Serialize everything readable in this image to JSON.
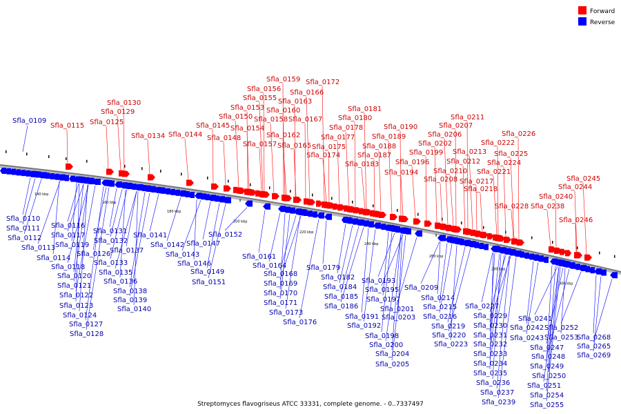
{
  "legend": {
    "forward_label": "Forward",
    "reverse_label": "Reverse",
    "forward_color": "#ff0000",
    "reverse_color": "#0000ff"
  },
  "caption": "Streptomyces flavogriseus ATCC 33331, complete genome. - 0..7337497",
  "ticks": [
    "140 kbp",
    "160 kbp",
    "180 kbp",
    "200 kbp",
    "220 kbp",
    "240 kbp",
    "260 kbp",
    "280 kbp",
    "300 kbp"
  ],
  "forward_genes": [
    "Sfla_0115",
    "Sfla_0125",
    "Sfla_0129",
    "Sfla_0130",
    "Sfla_0134",
    "Sfla_0144",
    "Sfla_0145",
    "Sfla_0148",
    "Sfla_0150",
    "Sfla_0153",
    "Sfla_0154",
    "Sfla_0155",
    "Sfla_0156",
    "Sfla_0157",
    "Sfla_0158",
    "Sfla_0159",
    "Sfla_0160",
    "Sfla_0162",
    "Sfla_0163",
    "Sfla_0165",
    "Sfla_0166",
    "Sfla_0167",
    "Sfla_0172",
    "Sfla_0174",
    "Sfla_0175",
    "Sfla_0177",
    "Sfla_0178",
    "Sfla_0180",
    "Sfla_0181",
    "Sfla_0183",
    "Sfla_0187",
    "Sfla_0188",
    "Sfla_0189",
    "Sfla_0190",
    "Sfla_0194",
    "Sfla_0196",
    "Sfla_0199",
    "Sfla_0202",
    "Sfla_0206",
    "Sfla_0207",
    "Sfla_0208",
    "Sfla_0210",
    "Sfla_0211",
    "Sfla_0212",
    "Sfla_0213",
    "Sfla_0217",
    "Sfla_0218",
    "Sfla_0221",
    "Sfla_0222",
    "Sfla_0224",
    "Sfla_0225",
    "Sfla_0226",
    "Sfla_0228",
    "Sfla_0238",
    "Sfla_0240",
    "Sfla_0244",
    "Sfla_0245",
    "Sfla_0246"
  ],
  "reverse_genes": [
    "Sfla_0109",
    "Sfla_0110",
    "Sfla_0111",
    "Sfla_0112",
    "Sfla_0113",
    "Sfla_0114",
    "Sfla_0116",
    "Sfla_0117",
    "Sfla_0118",
    "Sfla_0119",
    "Sfla_0120",
    "Sfla_0121",
    "Sfla_0122",
    "Sfla_0123",
    "Sfla_0124",
    "Sfla_0126",
    "Sfla_0127",
    "Sfla_0128",
    "Sfla_0131",
    "Sfla_0132",
    "Sfla_0133",
    "Sfla_0135",
    "Sfla_0136",
    "Sfla_0137",
    "Sfla_0138",
    "Sfla_0139",
    "Sfla_0140",
    "Sfla_0141",
    "Sfla_0142",
    "Sfla_0143",
    "Sfla_0146",
    "Sfla_0147",
    "Sfla_0149",
    "Sfla_0151",
    "Sfla_0152",
    "Sfla_0161",
    "Sfla_0164",
    "Sfla_0168",
    "Sfla_0169",
    "Sfla_0170",
    "Sfla_0171",
    "Sfla_0173",
    "Sfla_0176",
    "Sfla_0179",
    "Sfla_0182",
    "Sfla_0184",
    "Sfla_0185",
    "Sfla_0186",
    "Sfla_0191",
    "Sfla_0192",
    "Sfla_0193",
    "Sfla_0195",
    "Sfla_0197",
    "Sfla_0198",
    "Sfla_0200",
    "Sfla_0201",
    "Sfla_0203",
    "Sfla_0204",
    "Sfla_0205",
    "Sfla_0209",
    "Sfla_0214",
    "Sfla_0215",
    "Sfla_0216",
    "Sfla_0219",
    "Sfla_0220",
    "Sfla_0223",
    "Sfla_0227",
    "Sfla_0229",
    "Sfla_0230",
    "Sfla_0231",
    "Sfla_0232",
    "Sfla_0233",
    "Sfla_0234",
    "Sfla_0235",
    "Sfla_0236",
    "Sfla_0237",
    "Sfla_0239",
    "Sfla_0241",
    "Sfla_0242",
    "Sfla_0243",
    "Sfla_0247",
    "Sfla_0248",
    "Sfla_0249",
    "Sfla_0250",
    "Sfla_0251",
    "Sfla_0252",
    "Sfla_0253",
    "Sfla_0254",
    "Sfla_0255",
    "Sfla_0265",
    "Sfla_0268",
    "Sfla_0269"
  ]
}
